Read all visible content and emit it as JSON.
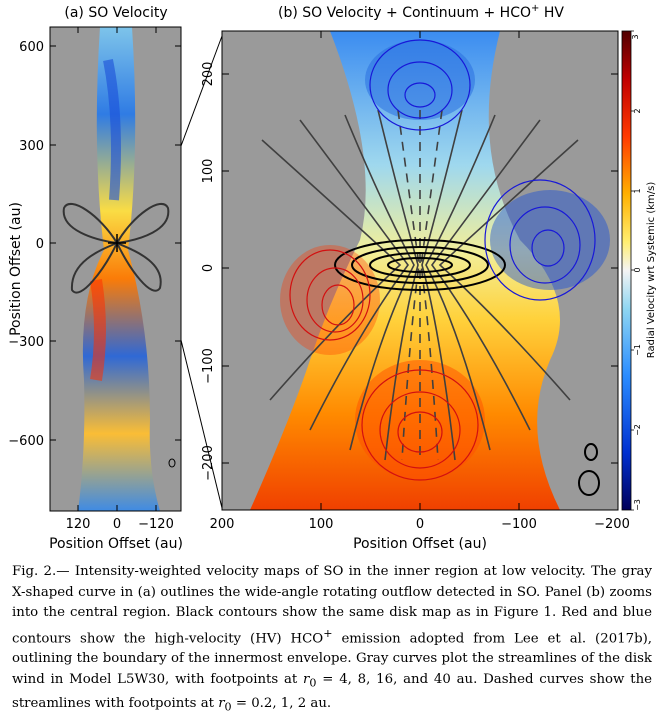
{
  "panel_a": {
    "title": "(a) SO Velocity",
    "y_ticks": [
      "600",
      "300",
      "0",
      "−300",
      "−600"
    ],
    "x_ticks": [
      "120",
      "0",
      "−120"
    ],
    "ylabel": "Position Offset (au)",
    "xlabel": "Position Offset (au)"
  },
  "panel_b": {
    "title_pre": "(b) SO Velocity + Continuum + HCO",
    "title_sup": "+",
    "title_post": " HV",
    "y_ticks": [
      "200",
      "100",
      "0",
      "−100",
      "−200"
    ],
    "x_ticks": [
      "200",
      "100",
      "0",
      "−100",
      "−200"
    ],
    "xlabel": "Position Offset (au)"
  },
  "colorbar": {
    "label": "Radial Velocity wrt Systemic (km/s)",
    "ticks": [
      "3",
      "2",
      "1",
      "0",
      "−1",
      "−2",
      "−3"
    ],
    "range": [
      -3,
      3
    ],
    "colors": [
      "#00005a",
      "#0030d0",
      "#2a8cff",
      "#8fd6f2",
      "#f4f4f4",
      "#ffee70",
      "#ffb000",
      "#ff3a00",
      "#c00000",
      "#500000"
    ]
  },
  "caption": {
    "fig": "Fig. 2.—",
    "part1": " Intensity-weighted velocity maps of SO in the inner region at low velocity. The gray X-shaped curve in (a) outlines the wide-angle rotating outflow detected in SO. Panel (b) zooms into the central region. Black contours show the same disk map as in Figure 1. Red and blue contours show the high-velocity (HV) HCO",
    "sup": "+",
    "part2": " emission adopted from Lee et al. (2017b), outlining the boundary of the innermost envelope. Gray curves plot the streamlines of the disk wind in Model L5W30, with footpoints at ",
    "r0a": "r",
    "r0a_sub": "0",
    "part3": " = 4, 8, 16, and 40 au. Dashed curves show the streamlines with footpoints at ",
    "r0b": "r",
    "r0b_sub": "0",
    "part4": " = 0.2, 1, 2 au."
  }
}
